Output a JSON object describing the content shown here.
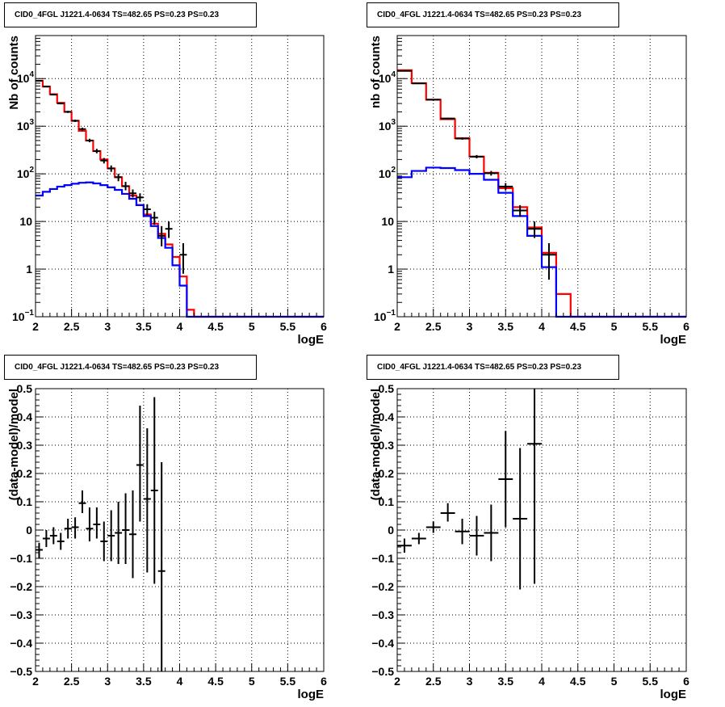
{
  "chart_data": [
    {
      "type": "step",
      "title": "CID0_4FGL J1221.4-0634 TS=482.65 PS=0.23 PS=0.23",
      "xlabel": "logE",
      "ylabel": "Nb of counts",
      "xlim": [
        2,
        6
      ],
      "ylim": [
        0.1,
        80000
      ],
      "yscale": "log",
      "grid": true,
      "xticks": [
        "2",
        "2.5",
        "3",
        "3.5",
        "4",
        "4.5",
        "5",
        "5.5",
        "6"
      ],
      "yticks": [
        {
          "v": 0.1,
          "label": "10",
          "exp": "−1"
        },
        {
          "v": 1,
          "label": "1",
          "exp": ""
        },
        {
          "v": 10,
          "label": "10",
          "exp": ""
        },
        {
          "v": 100,
          "label": "10",
          "exp": "2"
        },
        {
          "v": 1000,
          "label": "10",
          "exp": "3"
        },
        {
          "v": 10000,
          "label": "10",
          "exp": "4"
        }
      ],
      "bin_width": 0.1,
      "series": [
        {
          "color": "#ff0000",
          "x_start": 2.0,
          "values": [
            9000,
            6800,
            4700,
            3100,
            2000,
            1300,
            800,
            500,
            300,
            200,
            130,
            85,
            55,
            35,
            22,
            14,
            9,
            5.5,
            3.3,
            1.8,
            0.7,
            0.14,
            0.1,
            0.1,
            0.1,
            0.1,
            0.1,
            0.1,
            0.1,
            0.1,
            0.1,
            0.1,
            0.1,
            0.1,
            0.1,
            0.1,
            0.1,
            0.1,
            0.1,
            0.1
          ]
        },
        {
          "color": "#0000ff",
          "x_start": 2.0,
          "values": [
            35,
            42,
            48,
            54,
            58,
            62,
            65,
            66,
            63,
            58,
            52,
            46,
            38,
            30,
            22,
            13,
            8,
            4.5,
            2.8,
            1.2,
            0.45,
            0.1,
            0.1,
            0.1,
            0.1,
            0.1,
            0.1,
            0.1,
            0.1,
            0.1,
            0.1,
            0.1,
            0.1,
            0.1,
            0.1,
            0.1,
            0.1,
            0.1,
            0.1,
            0.1
          ]
        }
      ],
      "points": [
        {
          "x": 2.05,
          "y": 9000,
          "lo": 8800,
          "hi": 9200
        },
        {
          "x": 2.15,
          "y": 6800,
          "lo": 6600,
          "hi": 7000
        },
        {
          "x": 2.25,
          "y": 4600,
          "lo": 4450,
          "hi": 4750
        },
        {
          "x": 2.35,
          "y": 3000,
          "lo": 2880,
          "hi": 3120
        },
        {
          "x": 2.45,
          "y": 2000,
          "lo": 1900,
          "hi": 2100
        },
        {
          "x": 2.55,
          "y": 1300,
          "lo": 1230,
          "hi": 1370
        },
        {
          "x": 2.65,
          "y": 870,
          "lo": 810,
          "hi": 930
        },
        {
          "x": 2.75,
          "y": 500,
          "lo": 460,
          "hi": 545
        },
        {
          "x": 2.85,
          "y": 300,
          "lo": 270,
          "hi": 335
        },
        {
          "x": 2.95,
          "y": 190,
          "lo": 165,
          "hi": 215
        },
        {
          "x": 3.05,
          "y": 130,
          "lo": 110,
          "hi": 150
        },
        {
          "x": 3.15,
          "y": 85,
          "lo": 70,
          "hi": 100
        },
        {
          "x": 3.25,
          "y": 55,
          "lo": 45,
          "hi": 68
        },
        {
          "x": 3.35,
          "y": 39,
          "lo": 32,
          "hi": 47
        },
        {
          "x": 3.45,
          "y": 32,
          "lo": 26,
          "hi": 39
        },
        {
          "x": 3.55,
          "y": 18,
          "lo": 13.5,
          "hi": 23
        },
        {
          "x": 3.65,
          "y": 12,
          "lo": 8.5,
          "hi": 16
        },
        {
          "x": 3.75,
          "y": 5,
          "lo": 3,
          "hi": 8
        },
        {
          "x": 3.85,
          "y": 7,
          "lo": 4.5,
          "hi": 10
        },
        {
          "x": 4.05,
          "y": 2,
          "lo": 0.8,
          "hi": 3.5
        }
      ]
    },
    {
      "type": "step",
      "title": "CID0_4FGL J1221.4-0634 TS=482.65 PS=0.23 PS=0.23",
      "xlabel": "logE",
      "ylabel": "nb of counts",
      "xlim": [
        2,
        6
      ],
      "ylim": [
        0.1,
        80000
      ],
      "yscale": "log",
      "grid": true,
      "xticks": [
        "2",
        "2.5",
        "3",
        "3.5",
        "4",
        "4.5",
        "5",
        "5.5",
        "6"
      ],
      "yticks": [
        {
          "v": 0.1,
          "label": "10",
          "exp": "−1"
        },
        {
          "v": 1,
          "label": "1",
          "exp": ""
        },
        {
          "v": 10,
          "label": "10",
          "exp": ""
        },
        {
          "v": 100,
          "label": "10",
          "exp": "2"
        },
        {
          "v": 1000,
          "label": "10",
          "exp": "3"
        },
        {
          "v": 10000,
          "label": "10",
          "exp": "4"
        }
      ],
      "bin_width": 0.2,
      "series": [
        {
          "color": "#ff0000",
          "x_start": 2.0,
          "values": [
            15000,
            8000,
            3600,
            1400,
            560,
            230,
            105,
            50,
            20,
            7.5,
            2.2,
            0.3,
            0.1,
            0.1,
            0.1,
            0.1,
            0.1,
            0.1,
            0.1,
            0.1
          ]
        },
        {
          "color": "#0000ff",
          "x_start": 2.0,
          "values": [
            85,
            115,
            135,
            132,
            120,
            100,
            75,
            40,
            13,
            5,
            1.1,
            0.1,
            0.1,
            0.1,
            0.1,
            0.1,
            0.1,
            0.1,
            0.1,
            0.1
          ]
        }
      ],
      "points": [
        {
          "x": 2.1,
          "y": 14500,
          "lo": 14200,
          "hi": 14800
        },
        {
          "x": 2.3,
          "y": 7900,
          "lo": 7700,
          "hi": 8100
        },
        {
          "x": 2.5,
          "y": 3600,
          "lo": 3480,
          "hi": 3720
        },
        {
          "x": 2.7,
          "y": 1450,
          "lo": 1390,
          "hi": 1510
        },
        {
          "x": 2.9,
          "y": 550,
          "lo": 520,
          "hi": 580
        },
        {
          "x": 3.1,
          "y": 230,
          "lo": 212,
          "hi": 248
        },
        {
          "x": 3.3,
          "y": 103,
          "lo": 92,
          "hi": 115
        },
        {
          "x": 3.5,
          "y": 54,
          "lo": 45,
          "hi": 64
        },
        {
          "x": 3.7,
          "y": 17,
          "lo": 12.5,
          "hi": 22
        },
        {
          "x": 3.9,
          "y": 7,
          "lo": 4.5,
          "hi": 10
        },
        {
          "x": 4.1,
          "y": 2,
          "lo": 0.6,
          "hi": 3.5
        }
      ]
    },
    {
      "type": "scatter",
      "title": "CID0_4FGL J1221.4-0634 TS=482.65 PS=0.23 PS=0.23",
      "xlabel": "logE",
      "ylabel": "(data-model)/model",
      "xlim": [
        2,
        6
      ],
      "ylim": [
        -0.5,
        0.5
      ],
      "yscale": "linear",
      "grid": true,
      "xticks": [
        "2",
        "2.5",
        "3",
        "3.5",
        "4",
        "4.5",
        "5",
        "5.5",
        "6"
      ],
      "yticks": [
        {
          "v": -0.5,
          "label": "−0.5"
        },
        {
          "v": -0.4,
          "label": "−0.4"
        },
        {
          "v": -0.3,
          "label": "−0.3"
        },
        {
          "v": -0.2,
          "label": "−0.2"
        },
        {
          "v": -0.1,
          "label": "−0.1"
        },
        {
          "v": 0,
          "label": "0"
        },
        {
          "v": 0.1,
          "label": "0.1"
        },
        {
          "v": 0.2,
          "label": "0.2"
        },
        {
          "v": 0.3,
          "label": "0.3"
        },
        {
          "v": 0.4,
          "label": "0.4"
        },
        {
          "v": 0.5,
          "label": "0.5"
        }
      ],
      "bin_width": 0.1,
      "points": [
        {
          "x": 2.05,
          "y": -0.07,
          "lo": -0.1,
          "hi": -0.045
        },
        {
          "x": 2.15,
          "y": -0.03,
          "lo": -0.06,
          "hi": 0.0
        },
        {
          "x": 2.25,
          "y": -0.02,
          "lo": -0.05,
          "hi": 0.01
        },
        {
          "x": 2.35,
          "y": -0.04,
          "lo": -0.07,
          "hi": -0.01
        },
        {
          "x": 2.45,
          "y": 0.005,
          "lo": -0.03,
          "hi": 0.04
        },
        {
          "x": 2.55,
          "y": 0.01,
          "lo": -0.03,
          "hi": 0.045
        },
        {
          "x": 2.65,
          "y": 0.095,
          "lo": 0.06,
          "hi": 0.14
        },
        {
          "x": 2.75,
          "y": 0.005,
          "lo": -0.04,
          "hi": 0.08
        },
        {
          "x": 2.85,
          "y": 0.02,
          "lo": -0.03,
          "hi": 0.08
        },
        {
          "x": 2.95,
          "y": -0.04,
          "lo": -0.11,
          "hi": 0.03
        },
        {
          "x": 3.05,
          "y": -0.02,
          "lo": -0.11,
          "hi": 0.07
        },
        {
          "x": 3.15,
          "y": -0.01,
          "lo": -0.12,
          "hi": 0.1
        },
        {
          "x": 3.25,
          "y": 0.0,
          "lo": -0.12,
          "hi": 0.13
        },
        {
          "x": 3.35,
          "y": -0.015,
          "lo": -0.17,
          "hi": 0.14
        },
        {
          "x": 3.45,
          "y": 0.23,
          "lo": 0.03,
          "hi": 0.44
        },
        {
          "x": 3.55,
          "y": 0.11,
          "lo": -0.15,
          "hi": 0.36
        },
        {
          "x": 3.65,
          "y": 0.14,
          "lo": -0.19,
          "hi": 0.47
        },
        {
          "x": 3.75,
          "y": -0.145,
          "lo": -0.5,
          "hi": 0.24
        }
      ]
    },
    {
      "type": "scatter",
      "title": "CID0_4FGL J1221.4-0634 TS=482.65 PS=0.23 PS=0.23",
      "xlabel": "logE",
      "ylabel": "(data-model)/model",
      "xlim": [
        2,
        6
      ],
      "ylim": [
        -0.5,
        0.5
      ],
      "yscale": "linear",
      "grid": true,
      "xticks": [
        "2",
        "2.5",
        "3",
        "3.5",
        "4",
        "4.5",
        "5",
        "5.5",
        "6"
      ],
      "yticks": [
        {
          "v": -0.5,
          "label": "−0.5"
        },
        {
          "v": -0.4,
          "label": "−0.4"
        },
        {
          "v": -0.3,
          "label": "−0.3"
        },
        {
          "v": -0.2,
          "label": "−0.2"
        },
        {
          "v": -0.1,
          "label": "−0.1"
        },
        {
          "v": 0,
          "label": "0"
        },
        {
          "v": 0.1,
          "label": "0.1"
        },
        {
          "v": 0.2,
          "label": "0.2"
        },
        {
          "v": 0.3,
          "label": "0.3"
        },
        {
          "v": 0.4,
          "label": "0.4"
        },
        {
          "v": 0.5,
          "label": "0.5"
        }
      ],
      "bin_width": 0.2,
      "points": [
        {
          "x": 2.1,
          "y": -0.055,
          "lo": -0.08,
          "hi": -0.03
        },
        {
          "x": 2.3,
          "y": -0.03,
          "lo": -0.05,
          "hi": -0.01
        },
        {
          "x": 2.5,
          "y": 0.01,
          "lo": -0.01,
          "hi": 0.03
        },
        {
          "x": 2.7,
          "y": 0.06,
          "lo": 0.03,
          "hi": 0.095
        },
        {
          "x": 2.9,
          "y": -0.005,
          "lo": -0.05,
          "hi": 0.04
        },
        {
          "x": 3.1,
          "y": -0.02,
          "lo": -0.09,
          "hi": 0.05
        },
        {
          "x": 3.3,
          "y": -0.01,
          "lo": -0.11,
          "hi": 0.09
        },
        {
          "x": 3.5,
          "y": 0.18,
          "lo": 0.01,
          "hi": 0.35
        },
        {
          "x": 3.7,
          "y": 0.04,
          "lo": -0.21,
          "hi": 0.29
        },
        {
          "x": 3.9,
          "y": 0.305,
          "lo": -0.19,
          "hi": 0.5
        }
      ]
    }
  ]
}
